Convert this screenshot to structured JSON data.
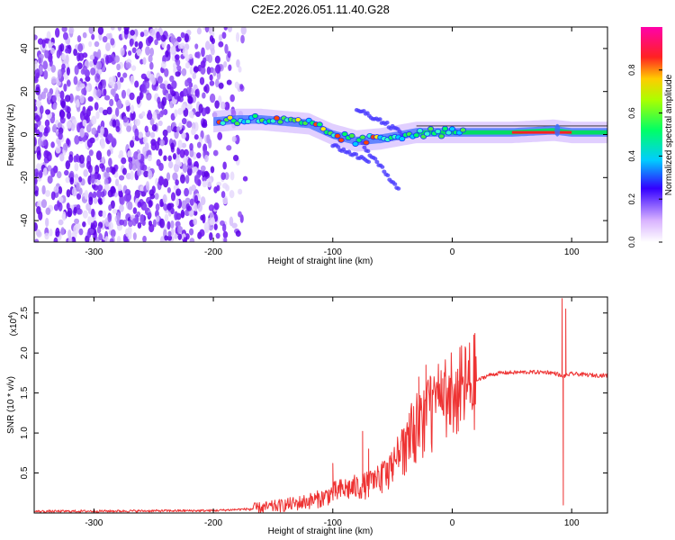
{
  "title": "C2E2.2026.051.11.40.G28",
  "colors": {
    "scatter": "#6a00e0",
    "cluster": "#3a8cff",
    "snr_line": "#ee3333",
    "axis": "#000000"
  },
  "chart_data": [
    {
      "type": "heatmap",
      "title": "C2E2.2026.051.11.40.G28",
      "xlabel": "Height of straight line (km)",
      "ylabel": "Frequency (Hz)",
      "xlim": [
        -350,
        130
      ],
      "ylim": [
        -50,
        50
      ],
      "xticks": [
        -300,
        -200,
        -100,
        0,
        100
      ],
      "yticks": [
        -40,
        -20,
        0,
        20,
        40
      ],
      "xtick_labels": [
        "-300",
        "-200",
        "-100",
        "0",
        "100"
      ],
      "ytick_labels": [
        "-40",
        "-20",
        "0",
        "20",
        "40"
      ],
      "noise_region_x": [
        -350,
        -170
      ],
      "trace": {
        "x": [
          -200,
          -180,
          -160,
          -140,
          -120,
          -100,
          -80,
          -60,
          -40,
          -30,
          0,
          50,
          85,
          100,
          130
        ],
        "y": [
          6,
          7,
          7,
          6,
          5,
          0,
          -3,
          -2,
          0,
          1,
          1,
          1,
          2,
          1,
          1
        ]
      },
      "branches": [
        {
          "x": [
            -80,
            -55,
            -40
          ],
          "y": [
            12,
            5,
            0
          ]
        },
        {
          "x": [
            -75,
            -60,
            -45
          ],
          "y": [
            -5,
            -15,
            -25
          ]
        },
        {
          "x": [
            -100,
            -80,
            -70
          ],
          "y": [
            -5,
            -10,
            -12
          ]
        }
      ],
      "colorbar": {
        "label": "Normalized spectral amplitude",
        "range": [
          0,
          1
        ],
        "ticks": [
          0.0,
          0.2,
          0.4,
          0.6,
          0.8
        ],
        "tick_labels": [
          "0.0",
          "0.2",
          "0.4",
          "0.6",
          "0.8"
        ]
      }
    },
    {
      "type": "line",
      "xlabel": "Height of straight line (km)",
      "ylabel": "SNR (10 * v/v)",
      "scale_label": "(x10",
      "scale_exp": "4",
      "scale_close": ")",
      "xlim": [
        -350,
        130
      ],
      "ylim": [
        0,
        2.7
      ],
      "xticks": [
        -300,
        -200,
        -100,
        0,
        100
      ],
      "yticks": [
        0.5,
        1.0,
        1.5,
        2.0,
        2.5
      ],
      "xtick_labels": [
        "-300",
        "-200",
        "-100",
        "0",
        "100"
      ],
      "ytick_labels": [
        "0.5",
        "1.0",
        "1.5",
        "2.0",
        "2.5"
      ],
      "envelope": {
        "x": [
          -350,
          -200,
          -170,
          -150,
          -130,
          -110,
          -100,
          -90,
          -80,
          -70,
          -60,
          -50,
          -40,
          -30,
          -20,
          -10,
          0,
          10,
          20,
          30,
          40,
          60,
          80,
          88,
          92,
          95,
          100,
          110,
          120,
          130
        ],
        "y": [
          0.02,
          0.03,
          0.05,
          0.08,
          0.12,
          0.18,
          0.25,
          0.3,
          0.32,
          0.35,
          0.42,
          0.55,
          0.8,
          1.05,
          1.2,
          1.35,
          1.45,
          1.55,
          1.65,
          1.72,
          1.75,
          1.76,
          1.76,
          1.74,
          1.7,
          1.72,
          1.74,
          1.73,
          1.72,
          1.72
        ]
      },
      "spikes": [
        {
          "x": -100,
          "y": 0.62
        },
        {
          "x": -75,
          "y": 1.02
        },
        {
          "x": -70,
          "y": 0.8
        },
        {
          "x": -50,
          "y": 0.62
        },
        {
          "x": -28,
          "y": 1.7
        },
        {
          "x": -22,
          "y": 1.85
        },
        {
          "x": -8,
          "y": 1.68
        },
        {
          "x": 5,
          "y": 1.65
        },
        {
          "x": 92,
          "y": 2.68
        },
        {
          "x": 93,
          "y": 0.1
        },
        {
          "x": 95,
          "y": 2.55
        }
      ]
    }
  ]
}
